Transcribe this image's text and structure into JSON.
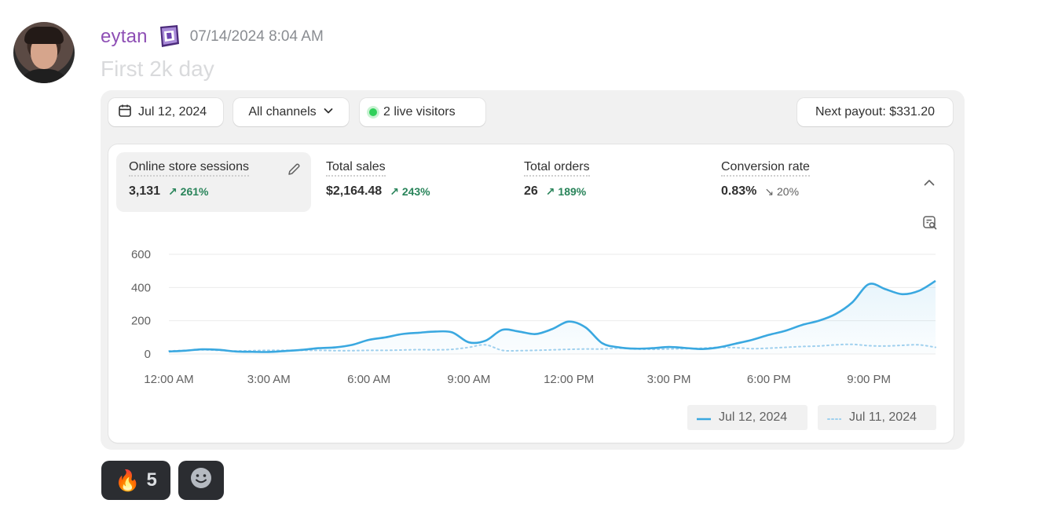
{
  "message": {
    "username": "eytan",
    "timestamp": "07/14/2024 8:04 AM",
    "text": "First 2k day",
    "avatar_icon": "user-avatar",
    "badge_icon": "guild-tag-badge"
  },
  "dashboard": {
    "date_label": "Jul 12, 2024",
    "channels_label": "All channels",
    "live_visitors_label": "2 live visitors",
    "payout_label": "Next payout: $331.20",
    "metrics": [
      {
        "label": "Online store sessions",
        "value": "3,131",
        "change": "261%",
        "direction": "up"
      },
      {
        "label": "Total sales",
        "value": "$2,164.48",
        "change": "243%",
        "direction": "up"
      },
      {
        "label": "Total orders",
        "value": "26",
        "change": "189%",
        "direction": "up"
      },
      {
        "label": "Conversion rate",
        "value": "0.83%",
        "change": "20%",
        "direction": "down"
      }
    ]
  },
  "chart_data": {
    "type": "line",
    "x_labels": [
      "12:00 AM",
      "3:00 AM",
      "6:00 AM",
      "9:00 AM",
      "12:00 PM",
      "3:00 PM",
      "6:00 PM",
      "9:00 PM"
    ],
    "x_hours": [
      0,
      0.5,
      1,
      1.5,
      2,
      2.5,
      3,
      3.5,
      4,
      4.5,
      5,
      5.5,
      6,
      6.5,
      7,
      7.5,
      8,
      8.5,
      9,
      9.5,
      10,
      10.5,
      11,
      11.5,
      12,
      12.5,
      13,
      13.5,
      14,
      14.5,
      15,
      15.5,
      16,
      16.5,
      17,
      17.5,
      18,
      18.5,
      19,
      19.5,
      20,
      20.5,
      21,
      21.5,
      22,
      22.5,
      23
    ],
    "y_ticks": [
      0,
      200,
      400,
      600
    ],
    "ylim": [
      0,
      600
    ],
    "xlim": [
      0,
      23
    ],
    "series": [
      {
        "name": "Jul 12, 2024",
        "style": "solid",
        "color": "#3aa8e0",
        "values": [
          15,
          20,
          28,
          25,
          15,
          13,
          12,
          18,
          25,
          35,
          40,
          55,
          85,
          100,
          120,
          128,
          135,
          130,
          70,
          80,
          145,
          135,
          120,
          150,
          195,
          160,
          65,
          40,
          32,
          35,
          42,
          36,
          30,
          40,
          62,
          85,
          115,
          140,
          175,
          200,
          240,
          310,
          420,
          390,
          360,
          380,
          440
        ]
      },
      {
        "name": "Jul 11, 2024",
        "style": "dotted",
        "color": "#9fd0ee",
        "values": [
          18,
          22,
          25,
          22,
          18,
          20,
          22,
          22,
          22,
          22,
          20,
          20,
          22,
          22,
          24,
          26,
          25,
          28,
          40,
          55,
          22,
          20,
          22,
          25,
          28,
          30,
          30,
          35,
          30,
          28,
          30,
          32,
          35,
          40,
          38,
          32,
          35,
          40,
          45,
          48,
          55,
          58,
          50,
          48,
          52,
          55,
          40
        ]
      }
    ]
  },
  "reactions": [
    {
      "emoji": "🔥",
      "count": "5"
    }
  ],
  "colors": {
    "username": "#8e4fb5",
    "accent_line": "#3aa8e0",
    "positive": "#29845a"
  }
}
